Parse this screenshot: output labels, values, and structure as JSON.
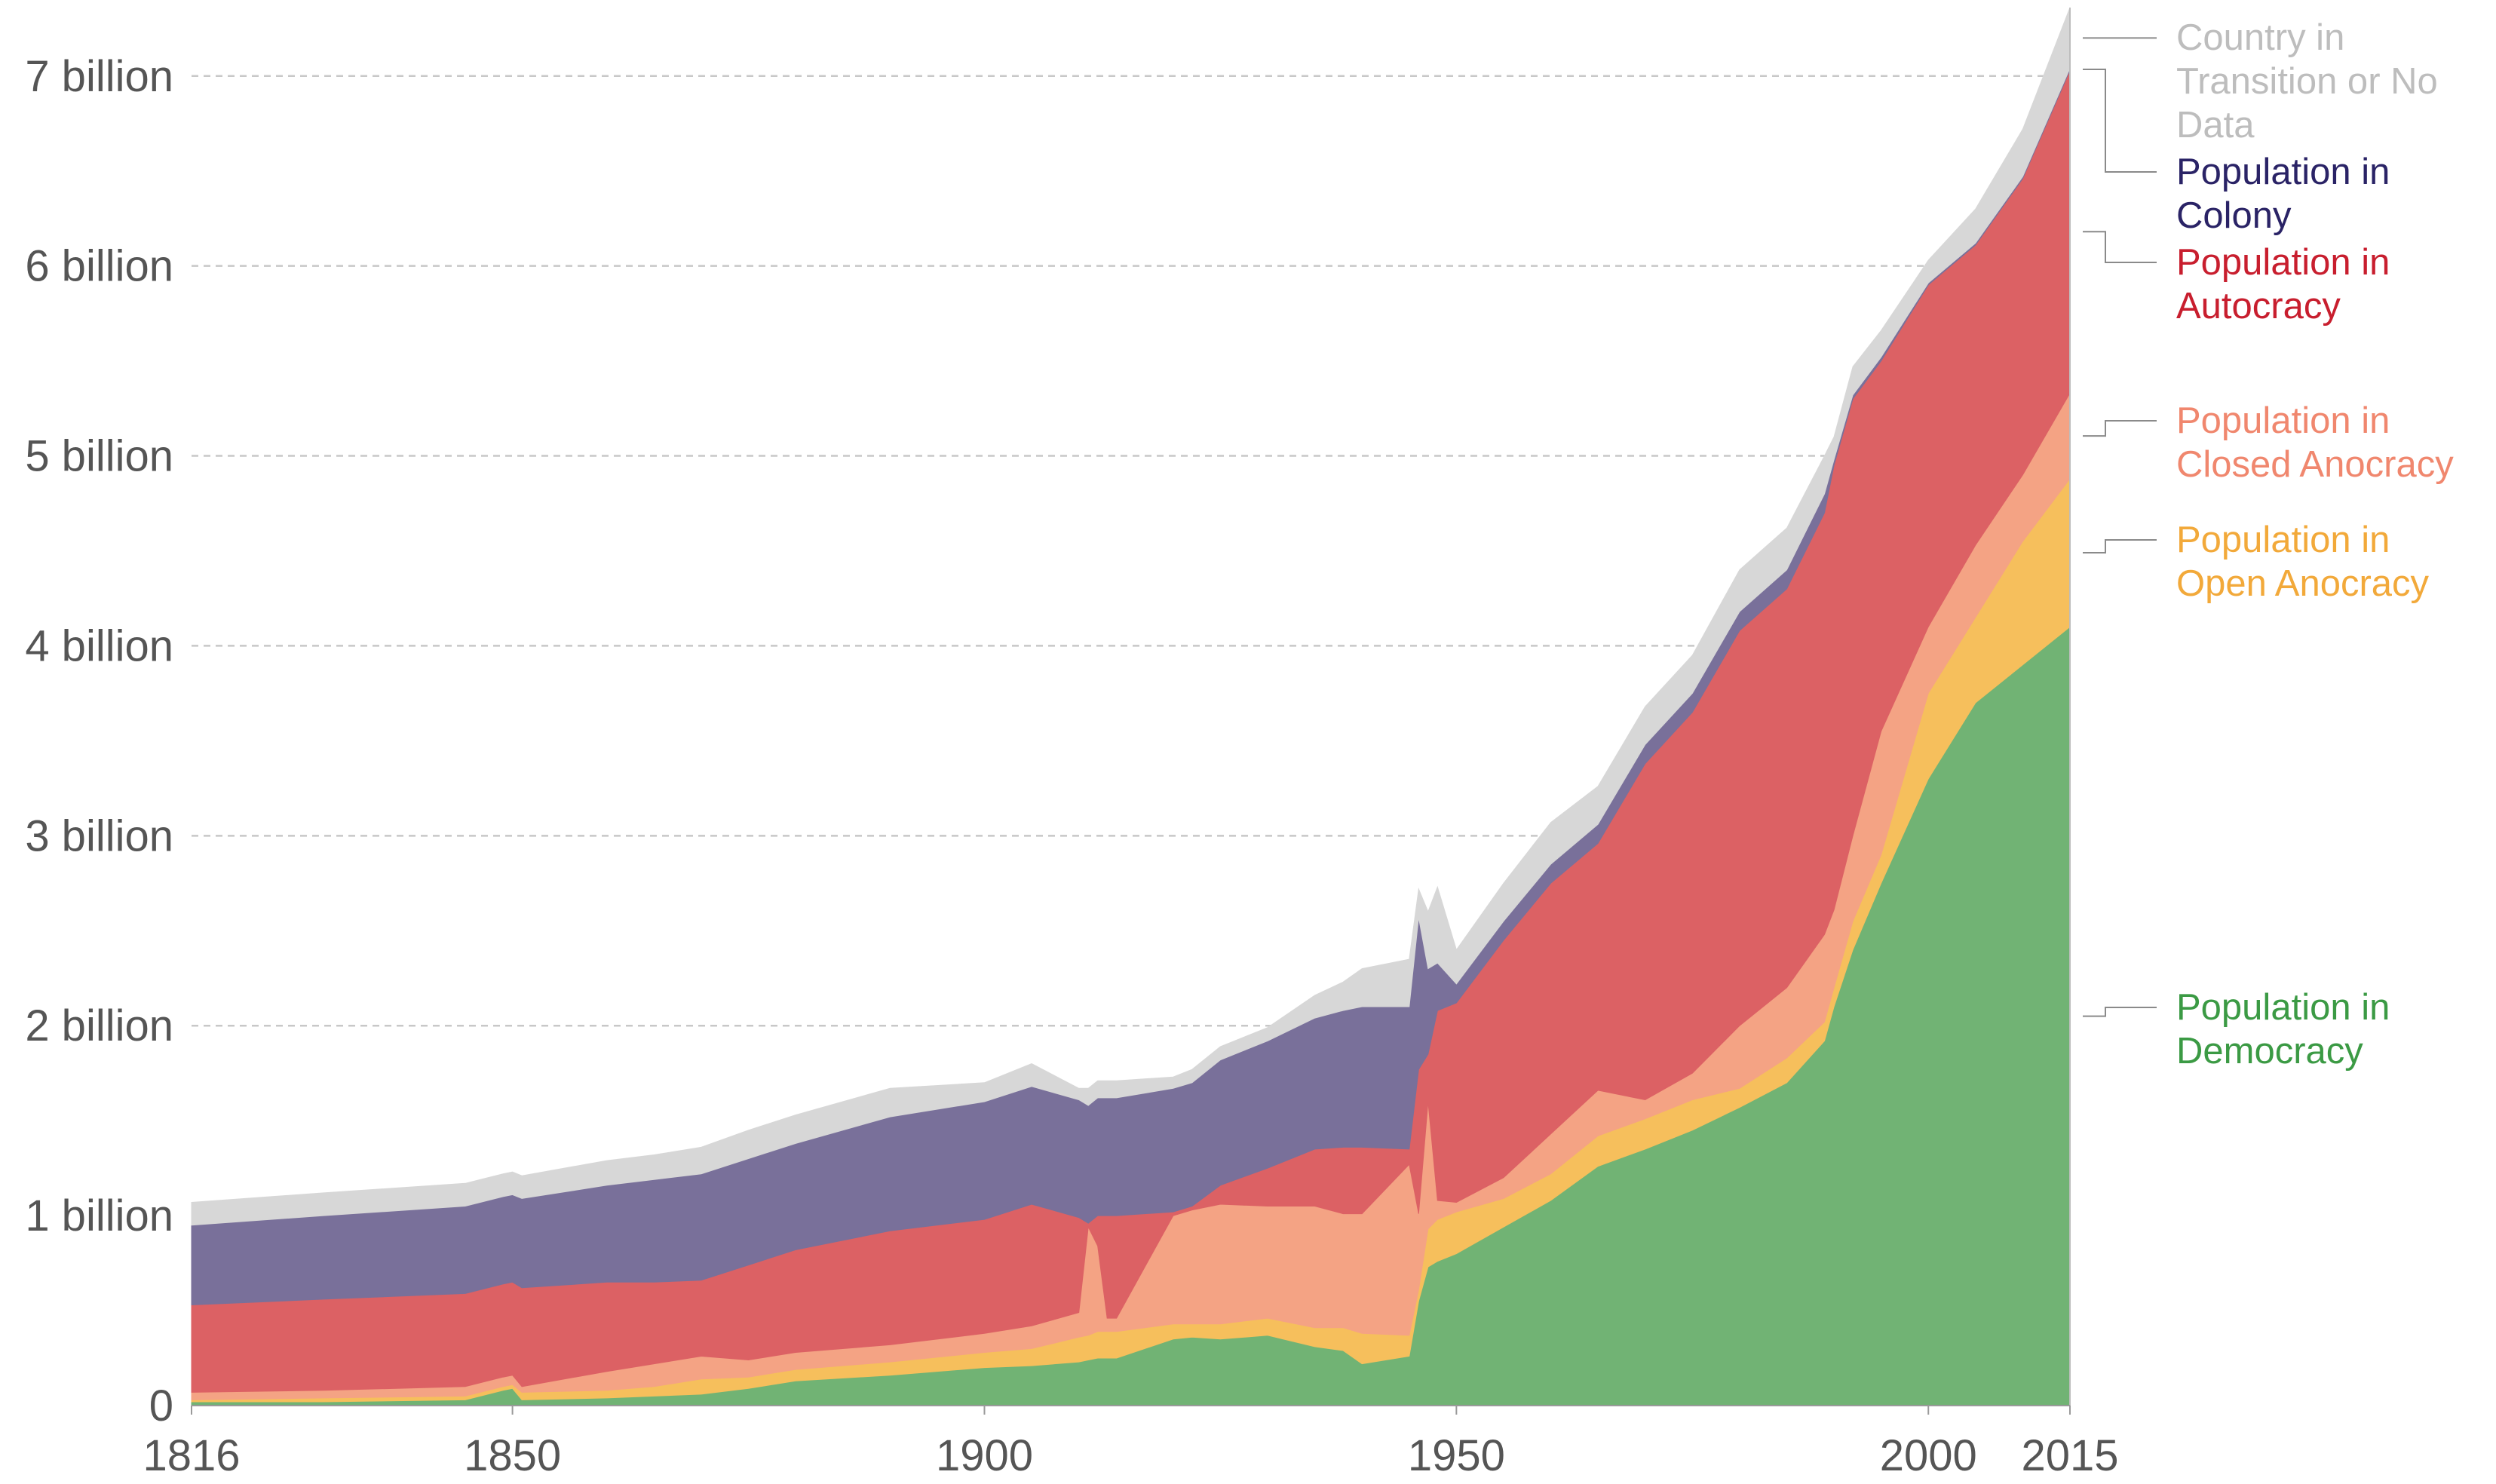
{
  "chart_data": {
    "type": "area",
    "stacked": true,
    "title": "",
    "xlabel": "",
    "ylabel": "",
    "xlim": [
      1816,
      2015
    ],
    "ylim": [
      0,
      7400000000
    ],
    "grid": true,
    "x_ticks": [
      1816,
      1850,
      1900,
      1950,
      2000,
      2015
    ],
    "y_ticks": [
      {
        "value": 0,
        "label": "0"
      },
      {
        "value": 1000000000,
        "label": "1 billion"
      },
      {
        "value": 2000000000,
        "label": "2 billion"
      },
      {
        "value": 3000000000,
        "label": "3 billion"
      },
      {
        "value": 4000000000,
        "label": "4 billion"
      },
      {
        "value": 5000000000,
        "label": "5 billion"
      },
      {
        "value": 6000000000,
        "label": "6 billion"
      },
      {
        "value": 7000000000,
        "label": "7 billion"
      }
    ],
    "x": [
      1816,
      1830,
      1845,
      1849,
      1850,
      1851,
      1860,
      1865,
      1870,
      1875,
      1880,
      1890,
      1900,
      1905,
      1910,
      1911,
      1912,
      1913,
      1914,
      1920,
      1922,
      1925,
      1930,
      1935,
      1938,
      1940,
      1945,
      1946,
      1947,
      1948,
      1950,
      1955,
      1960,
      1965,
      1970,
      1975,
      1980,
      1985,
      1989,
      1990,
      1992,
      1995,
      2000,
      2005,
      2010,
      2015
    ],
    "series": [
      {
        "name": "Population in Democracy",
        "color": "#71b374",
        "values": [
          0.02,
          0.02,
          0.03,
          0.08,
          0.09,
          0.03,
          0.04,
          0.05,
          0.06,
          0.09,
          0.13,
          0.16,
          0.2,
          0.21,
          0.23,
          0.24,
          0.25,
          0.25,
          0.25,
          0.35,
          0.36,
          0.35,
          0.37,
          0.31,
          0.29,
          0.22,
          0.26,
          0.55,
          0.73,
          0.76,
          0.8,
          0.94,
          1.08,
          1.26,
          1.35,
          1.45,
          1.57,
          1.7,
          1.92,
          2.1,
          2.4,
          2.75,
          3.3,
          3.7,
          3.9,
          4.1
        ]
      },
      {
        "name": "Population in Open Anocracy",
        "color": "#f6bf5c",
        "values": [
          0.01,
          0.02,
          0.02,
          0.02,
          0.02,
          0.04,
          0.04,
          0.05,
          0.08,
          0.06,
          0.06,
          0.07,
          0.08,
          0.09,
          0.13,
          0.13,
          0.14,
          0.14,
          0.14,
          0.08,
          0.07,
          0.08,
          0.09,
          0.1,
          0.12,
          0.16,
          0.11,
          0.06,
          0.2,
          0.22,
          0.22,
          0.15,
          0.14,
          0.16,
          0.16,
          0.16,
          0.1,
          0.13,
          0.1,
          0.1,
          0.15,
          0.15,
          0.45,
          0.45,
          0.65,
          0.78
        ]
      },
      {
        "name": "Population in Closed Anocracy",
        "color": "#f4a384",
        "values": [
          0.04,
          0.04,
          0.05,
          0.05,
          0.05,
          0.03,
          0.1,
          0.12,
          0.12,
          0.09,
          0.09,
          0.09,
          0.1,
          0.12,
          0.13,
          0.57,
          0.45,
          0.07,
          0.07,
          0.57,
          0.6,
          0.63,
          0.59,
          0.64,
          0.6,
          0.63,
          0.9,
          0.4,
          0.67,
          0.1,
          0.05,
          0.11,
          0.21,
          0.24,
          0.1,
          0.14,
          0.33,
          0.37,
          0.46,
          0.41,
          0.45,
          0.65,
          0.35,
          0.38,
          0.35,
          0.45
        ]
      },
      {
        "name": "Population in Autocracy",
        "color": "#dc6164",
        "values": [
          0.46,
          0.48,
          0.49,
          0.49,
          0.49,
          0.52,
          0.47,
          0.43,
          0.4,
          0.5,
          0.54,
          0.6,
          0.6,
          0.64,
          0.5,
          0.02,
          0.16,
          0.54,
          0.54,
          0.02,
          0.02,
          0.1,
          0.2,
          0.3,
          0.35,
          0.35,
          0.08,
          0.76,
          0.25,
          1.0,
          1.05,
          1.25,
          1.32,
          1.3,
          1.77,
          1.9,
          2.08,
          2.1,
          2.22,
          2.34,
          2.3,
          1.95,
          1.8,
          1.58,
          1.56,
          1.7
        ]
      },
      {
        "name": "Population in Colony",
        "color": "#79709a",
        "values": [
          0.42,
          0.44,
          0.46,
          0.46,
          0.46,
          0.47,
          0.51,
          0.54,
          0.56,
          0.56,
          0.56,
          0.6,
          0.62,
          0.62,
          0.62,
          0.62,
          0.62,
          0.62,
          0.62,
          0.65,
          0.65,
          0.66,
          0.67,
          0.69,
          0.72,
          0.74,
          0.75,
          0.8,
          0.45,
          0.25,
          0.1,
          0.1,
          0.1,
          0.1,
          0.1,
          0.1,
          0.1,
          0.1,
          0.1,
          0.03,
          0.02,
          0.02,
          0.01,
          0.01,
          0.01,
          0.01
        ]
      },
      {
        "name": "Country in Transition or No Data",
        "color": "#d7d7d7",
        "values": [
          0.12,
          0.12,
          0.12,
          0.12,
          0.12,
          0.12,
          0.13,
          0.13,
          0.14,
          0.15,
          0.15,
          0.15,
          0.1,
          0.12,
          0.06,
          0.09,
          0.09,
          0.09,
          0.09,
          0.06,
          0.07,
          0.07,
          0.07,
          0.12,
          0.15,
          0.2,
          0.25,
          0.15,
          0.3,
          0.4,
          0.18,
          0.2,
          0.22,
          0.2,
          0.2,
          0.2,
          0.22,
          0.22,
          0.2,
          0.12,
          0.15,
          0.14,
          0.12,
          0.18,
          0.25,
          0.32
        ]
      }
    ],
    "value_unit": "billion",
    "legend": {
      "placement": "right",
      "entries": [
        {
          "series": "Country in Transition or No Data",
          "lines": [
            "Country in",
            "Transition or No",
            "Data"
          ],
          "color": "#bdbdbd"
        },
        {
          "series": "Population in Colony",
          "lines": [
            "Population in",
            "Colony"
          ],
          "color": "#2a2366"
        },
        {
          "series": "Population in Autocracy",
          "lines": [
            "Population in",
            "Autocracy"
          ],
          "color": "#c81e2e"
        },
        {
          "series": "Population in Closed Anocracy",
          "lines": [
            "Population in",
            "Closed Anocracy"
          ],
          "color": "#f0876e"
        },
        {
          "series": "Population in Open Anocracy",
          "lines": [
            "Population in",
            "Open Anocracy"
          ],
          "color": "#f2a93a"
        },
        {
          "series": "Population in Democracy",
          "lines": [
            "Population in",
            "Democracy"
          ],
          "color": "#3b9a44"
        }
      ]
    }
  }
}
